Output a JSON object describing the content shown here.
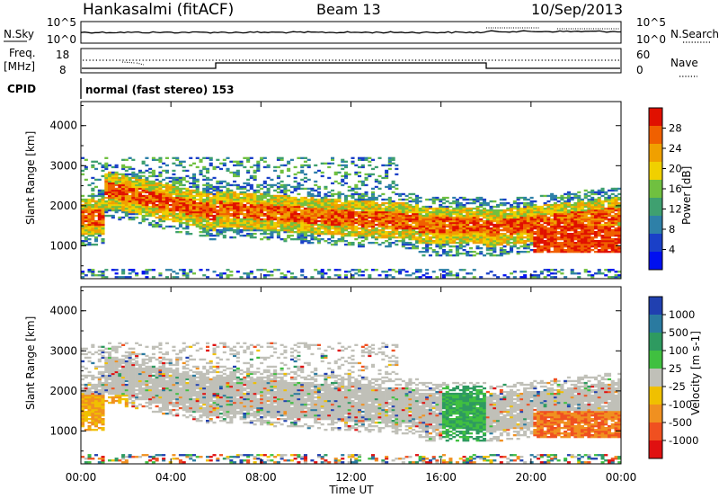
{
  "header": {
    "station": "Hankasalmi (fitACF)",
    "beam": "Beam 13",
    "date": "10/Sep/2013"
  },
  "noise_panel": {
    "left_label": "N.Sky",
    "right_label": "N.Search",
    "left_ticks": [
      "10^5",
      "10^0"
    ],
    "right_ticks": [
      "10^5",
      "10^0"
    ]
  },
  "freq_panel": {
    "left_label_1": "Freq.",
    "left_label_2": "[MHz]",
    "left_ticks": [
      "18",
      "8"
    ],
    "right_label": "Nave",
    "right_ticks": [
      "60",
      "0"
    ]
  },
  "cpid": {
    "label": "CPID",
    "value": "normal (fast stereo) 153"
  },
  "chart_data": [
    {
      "type": "heatmap",
      "name": "power",
      "ylabel": "Slant Range [km]",
      "xlabel": "Time UT",
      "x_ticks": [
        "00:00",
        "04:00",
        "08:00",
        "12:00",
        "16:00",
        "20:00",
        "00:00"
      ],
      "xlim_hours": [
        0,
        24
      ],
      "ylim": [
        180,
        4600
      ],
      "y_ticks": [
        "1000",
        "2000",
        "3000",
        "4000"
      ],
      "colorbar": {
        "label": "Power [dB]",
        "ticks": [
          "4",
          "8",
          "12",
          "16",
          "20",
          "24",
          "28"
        ],
        "range": [
          0,
          30
        ],
        "colors": [
          "#0010f0",
          "#1a40c8",
          "#2e80a8",
          "#3fa070",
          "#70c040",
          "#f0d000",
          "#f0a000",
          "#f06000",
          "#e01000"
        ]
      }
    },
    {
      "type": "heatmap",
      "name": "velocity",
      "ylabel": "Slant Range [km]",
      "xlabel": "Time UT",
      "x_ticks": [
        "00:00",
        "04:00",
        "08:00",
        "12:00",
        "16:00",
        "20:00",
        "00:00"
      ],
      "xlim_hours": [
        0,
        24
      ],
      "ylim": [
        180,
        4600
      ],
      "y_ticks": [
        "1000",
        "2000",
        "3000",
        "4000"
      ],
      "colorbar": {
        "label": "Velocity [m s-1]",
        "ticks": [
          "1000",
          "500",
          "100",
          "25",
          "-25",
          "-100",
          "-500",
          "-1000"
        ],
        "colors": [
          "#2040b0",
          "#2a7aa0",
          "#2e9a60",
          "#40c040",
          "#c0c0b8",
          "#f0c000",
          "#f09020",
          "#f05020",
          "#e01010"
        ]
      }
    }
  ]
}
